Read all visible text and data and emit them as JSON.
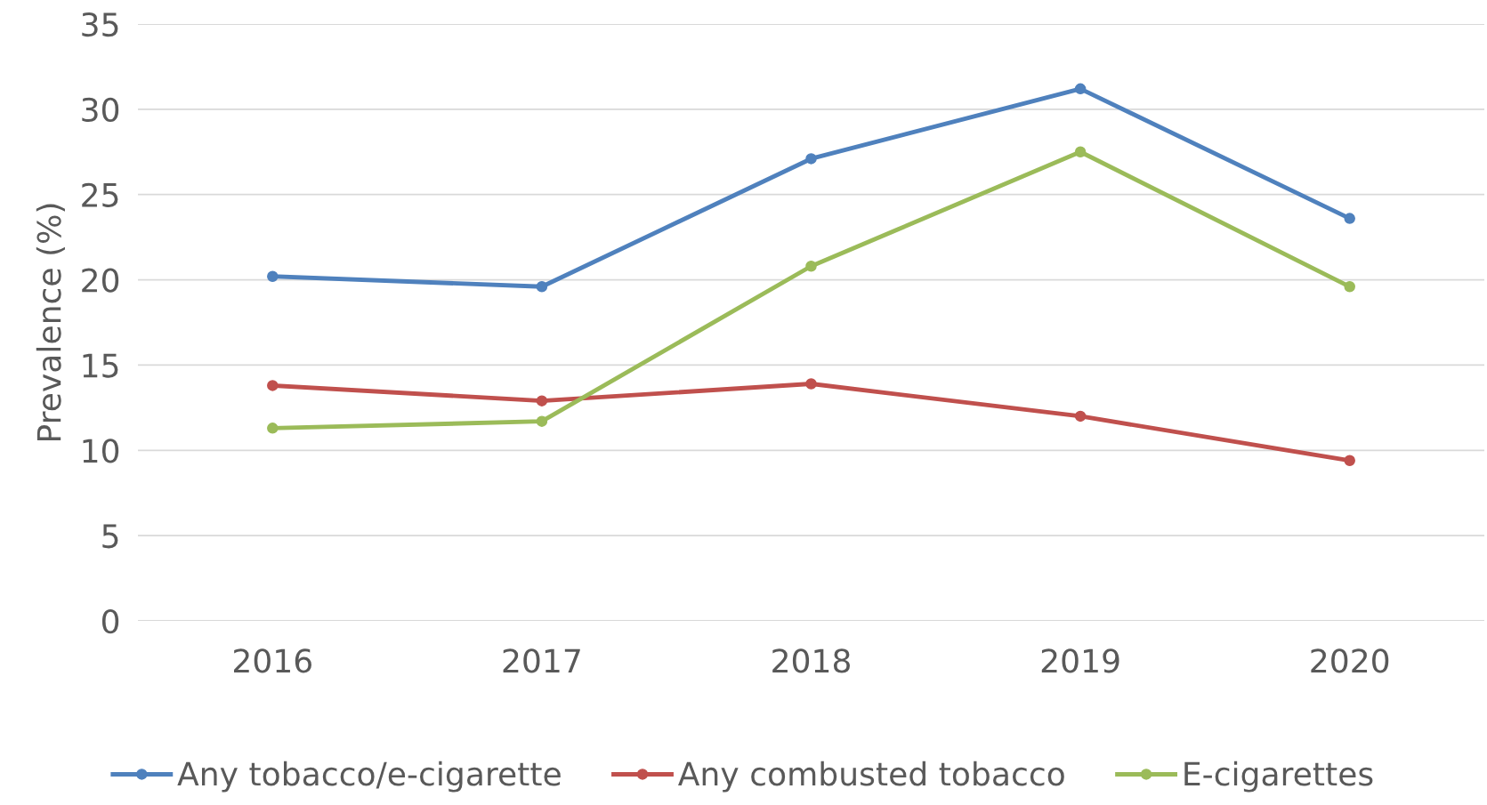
{
  "chart_data": {
    "type": "line",
    "ylabel": "Prevalence (%)",
    "categories": [
      "2016",
      "2017",
      "2018",
      "2019",
      "2020"
    ],
    "series": [
      {
        "name": "Any tobacco/e-cigarette",
        "color": "#4f81bd",
        "values": [
          20.2,
          19.6,
          27.1,
          31.2,
          23.6
        ]
      },
      {
        "name": "Any combusted tobacco",
        "color": "#c0504d",
        "values": [
          13.8,
          12.9,
          13.9,
          12.0,
          9.4
        ]
      },
      {
        "name": "E-cigarettes",
        "color": "#9bbb59",
        "values": [
          11.3,
          11.7,
          20.8,
          27.5,
          19.6
        ]
      }
    ],
    "ylim": [
      0,
      35
    ],
    "yticks": [
      0,
      5,
      10,
      15,
      20,
      25,
      30,
      35
    ],
    "grid": "y",
    "legend": "bottom",
    "marker": "circle",
    "line_style": "solid"
  }
}
